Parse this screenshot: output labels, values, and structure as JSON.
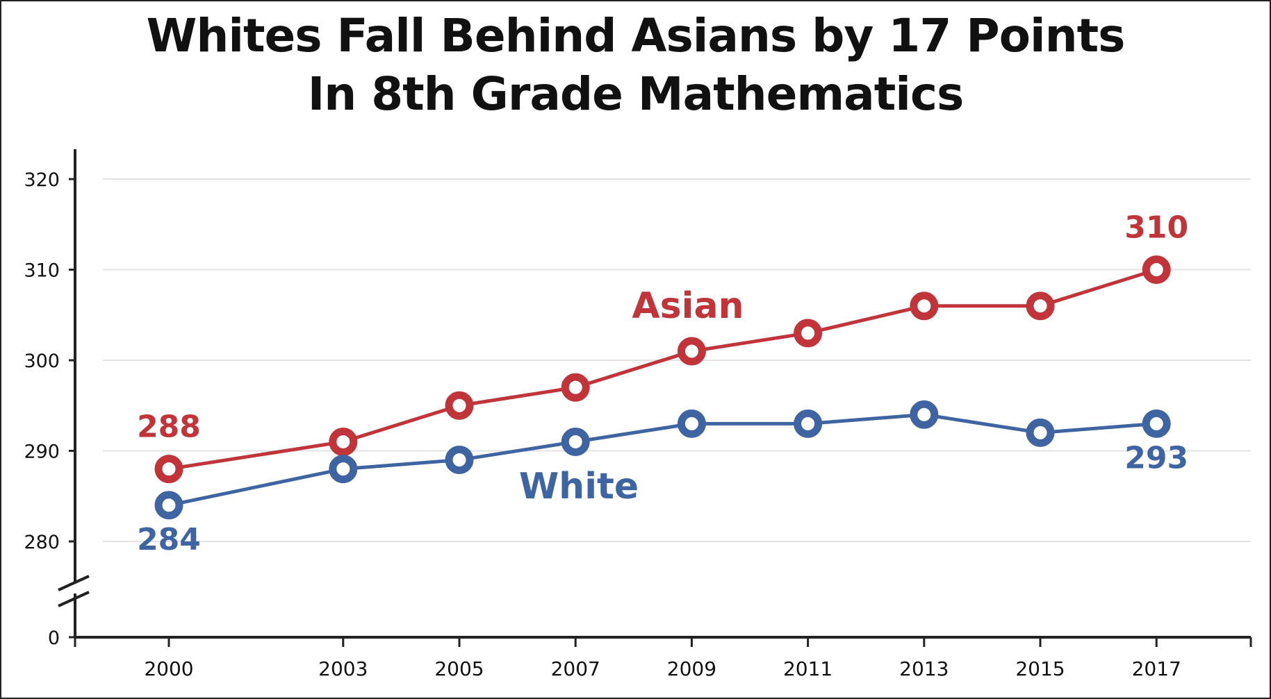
{
  "title": {
    "line1": "Whites Fall Behind Asians by 17 Points",
    "line2": "In 8th Grade Mathematics"
  },
  "colors": {
    "asian": "#c0343a",
    "white": "#3f64a2",
    "axis": "#222222",
    "grid": "#e3e3e3",
    "text": "#111111"
  },
  "chart_data": {
    "type": "line",
    "title": "Whites Fall Behind Asians by 17 Points In 8th Grade Mathematics",
    "xlabel": "",
    "ylabel": "",
    "categories": [
      "2000",
      "2003",
      "2005",
      "2007",
      "2009",
      "2011",
      "2013",
      "2015",
      "2017"
    ],
    "x": [
      2000,
      2003,
      2005,
      2007,
      2009,
      2011,
      2013,
      2015,
      2017
    ],
    "y_ticks": [
      320,
      310,
      300,
      290,
      280,
      0
    ],
    "ylim": [
      278,
      322
    ],
    "axis_break": true,
    "grid": true,
    "series": [
      {
        "name": "Asian",
        "values": [
          288,
          291,
          295,
          297,
          301,
          303,
          306,
          306,
          310
        ]
      },
      {
        "name": "White",
        "values": [
          284,
          288,
          289,
          291,
          293,
          293,
          294,
          292,
          293
        ]
      }
    ],
    "annotations": [
      {
        "series": "Asian",
        "year": 2000,
        "text": "288"
      },
      {
        "series": "Asian",
        "year": 2017,
        "text": "310"
      },
      {
        "series": "White",
        "year": 2000,
        "text": "284"
      },
      {
        "series": "White",
        "year": 2017,
        "text": "293"
      }
    ]
  }
}
